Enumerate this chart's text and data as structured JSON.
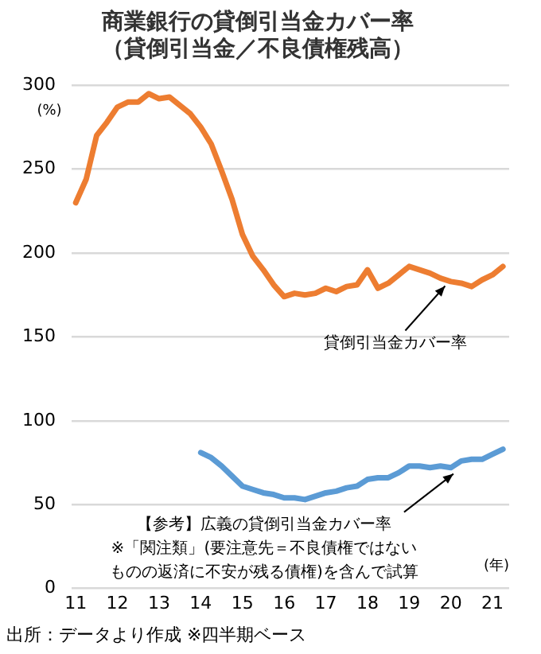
{
  "chart_data": {
    "type": "line",
    "title": "商業銀行の貸倒引当金カバー率",
    "subtitle": "（貸倒引当金／不良債権残高）",
    "ylabel": "(%)",
    "xlabel": "(年)",
    "series": [
      {
        "color": "#ed7d31",
        "x": [
          11,
          11.25,
          11.5,
          11.75,
          12,
          12.25,
          12.5,
          12.75,
          13,
          13.25,
          13.5,
          13.75,
          14,
          14.25,
          14.5,
          14.75,
          15,
          15.25,
          15.5,
          15.75,
          16,
          16.25,
          16.5,
          16.75,
          17,
          17.25,
          17.5,
          17.75,
          18,
          18.25,
          18.5,
          18.75,
          19,
          19.25,
          19.5,
          19.75,
          20,
          20.25,
          20.5,
          20.75,
          21,
          21.25
        ],
        "values": [
          230,
          244,
          270,
          278,
          287,
          290,
          290,
          295,
          292,
          293,
          288,
          283,
          275,
          265,
          249,
          232,
          211,
          198,
          190,
          181,
          174,
          176,
          175,
          176,
          179,
          177,
          180,
          181,
          190,
          179,
          182,
          187,
          192,
          190,
          188,
          185,
          183,
          182,
          180,
          184,
          187,
          192
        ]
      },
      {
        "color": "#5b9bd5",
        "x": [
          14,
          14.25,
          14.5,
          14.75,
          15,
          15.25,
          15.5,
          15.75,
          16,
          16.25,
          16.5,
          16.75,
          17,
          17.25,
          17.5,
          17.75,
          18,
          18.25,
          18.5,
          18.75,
          19,
          19.25,
          19.5,
          19.75,
          20,
          20.25,
          20.5,
          20.75,
          21,
          21.25
        ],
        "values": [
          81,
          78,
          73,
          67,
          61,
          59,
          57,
          56,
          54,
          54,
          53,
          55,
          57,
          58,
          60,
          61,
          65,
          66,
          66,
          69,
          73,
          73,
          72,
          73,
          72,
          76,
          77,
          77,
          80,
          83
        ]
      }
    ],
    "xlim": [
      10.9,
      21.4
    ],
    "xticks": [
      11,
      12,
      13,
      14,
      15,
      16,
      17,
      18,
      19,
      20,
      21
    ],
    "ylim": [
      0,
      300
    ],
    "yticks": [
      0,
      50,
      100,
      150,
      200,
      250,
      300
    ],
    "grid": "y",
    "legend": false,
    "marker": "none",
    "line_style": "solid",
    "annotations": [
      {
        "text": "貸倒引当金カバー率",
        "x": 19.9,
        "y": 186
      },
      {
        "text": "【参考】広義の貸倒引当金カバー率\n※「関注類」(要注意先＝不良債権ではないものの返済に不安が残る債権)を含んで試算",
        "x": 20.1,
        "y": 74
      },
      "出所：データより作成 ※四半期ベース"
    ]
  }
}
